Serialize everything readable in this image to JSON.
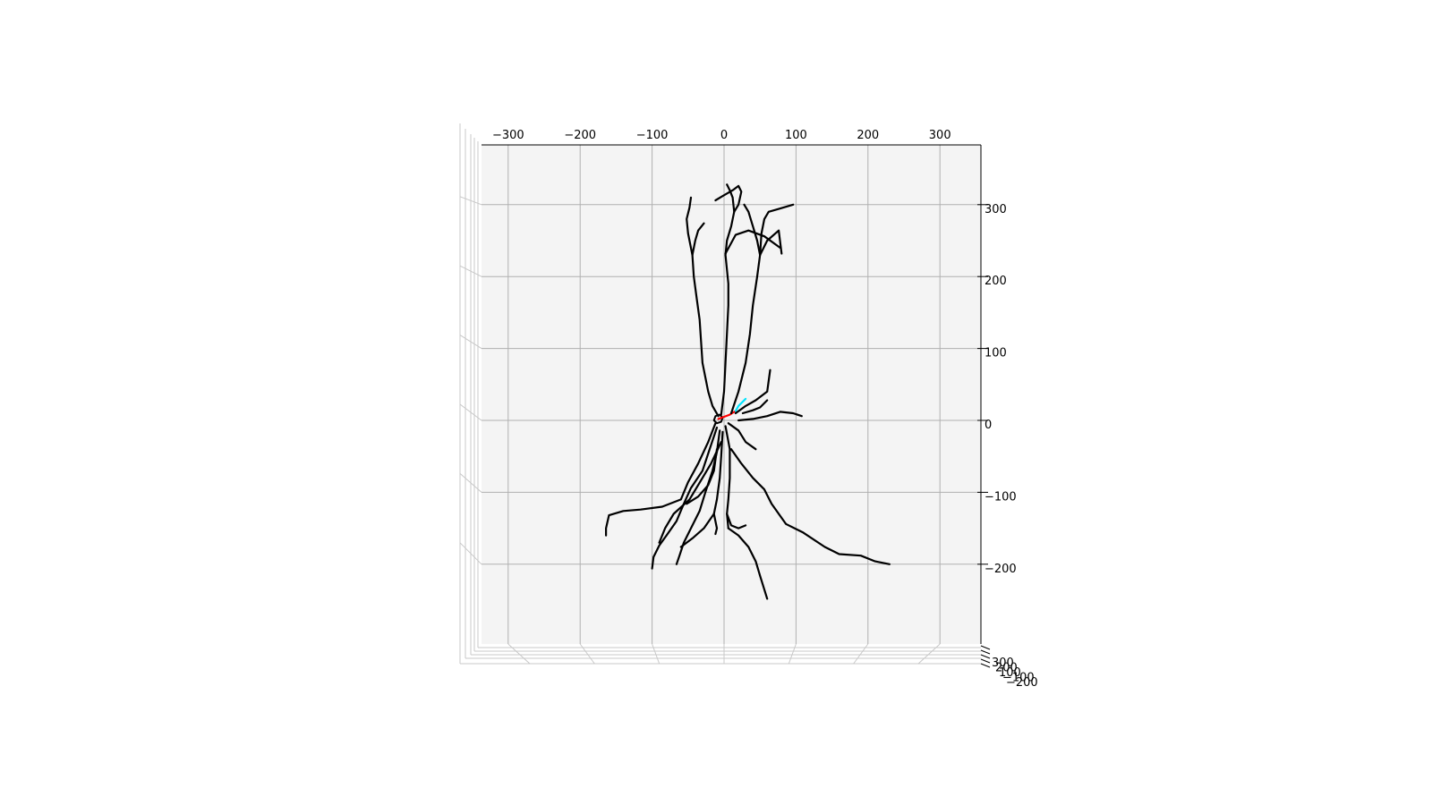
{
  "chart_data": {
    "type": "3d-line",
    "title": "",
    "xlabel": "",
    "ylabel": "",
    "zlabel": "",
    "xlim": [
      -350,
      350
    ],
    "ylim": [
      -300,
      390
    ],
    "grid": true,
    "pane_color": "#f4f4f4",
    "grid_color": "#b0b0b0",
    "x_ticks": [
      {
        "value": -300,
        "label": "−300"
      },
      {
        "value": -200,
        "label": "−200"
      },
      {
        "value": -100,
        "label": "−100"
      },
      {
        "value": 0,
        "label": "0"
      },
      {
        "value": 100,
        "label": "100"
      },
      {
        "value": 200,
        "label": "200"
      },
      {
        "value": 300,
        "label": "300"
      }
    ],
    "y_ticks": [
      {
        "value": 300,
        "label": "300"
      },
      {
        "value": 200,
        "label": "200"
      },
      {
        "value": 100,
        "label": "100"
      },
      {
        "value": 0,
        "label": "0"
      },
      {
        "value": -100,
        "label": "−100"
      },
      {
        "value": -200,
        "label": "−200"
      }
    ],
    "z_ticks": [
      {
        "value": 300,
        "label": "300"
      },
      {
        "value": 200,
        "label": "200"
      },
      {
        "value": 100,
        "label": "100"
      },
      {
        "value": -100,
        "label": "−100"
      },
      {
        "value": -200,
        "label": "−200"
      }
    ],
    "series": [
      {
        "kind": "soma",
        "color": "#000000",
        "points": [
          [
            -14,
            0
          ],
          [
            -12,
            6
          ],
          [
            -6,
            8
          ],
          [
            -2,
            4
          ],
          [
            -4,
            -2
          ],
          [
            -10,
            -4
          ],
          [
            -14,
            0
          ]
        ]
      },
      {
        "kind": "axon",
        "color": "#ff0000",
        "points": [
          [
            -8,
            2
          ],
          [
            0,
            5
          ],
          [
            8,
            8
          ],
          [
            16,
            13
          ]
        ]
      },
      {
        "kind": "apical",
        "color": "#00e5ff",
        "points": [
          [
            16,
            13
          ],
          [
            20,
            20
          ],
          [
            26,
            26
          ],
          [
            30,
            30
          ]
        ]
      },
      {
        "kind": "dendrite",
        "color": "#000000",
        "points": [
          [
            -8,
            6
          ],
          [
            -16,
            20
          ],
          [
            -22,
            40
          ],
          [
            -26,
            60
          ],
          [
            -30,
            80
          ],
          [
            -32,
            110
          ],
          [
            -34,
            140
          ],
          [
            -38,
            170
          ],
          [
            -42,
            200
          ],
          [
            -44,
            230
          ],
          [
            -50,
            260
          ],
          [
            -52,
            280
          ],
          [
            -48,
            296
          ],
          [
            -46,
            310
          ]
        ]
      },
      {
        "kind": "dendrite",
        "color": "#000000",
        "points": [
          [
            -44,
            230
          ],
          [
            -40,
            250
          ],
          [
            -36,
            264
          ],
          [
            -28,
            274
          ]
        ]
      },
      {
        "kind": "dendrite",
        "color": "#000000",
        "points": [
          [
            -4,
            8
          ],
          [
            0,
            40
          ],
          [
            2,
            80
          ],
          [
            4,
            120
          ],
          [
            6,
            160
          ],
          [
            6,
            190
          ],
          [
            4,
            210
          ],
          [
            2,
            230
          ],
          [
            4,
            250
          ],
          [
            10,
            270
          ],
          [
            14,
            290
          ],
          [
            12,
            310
          ],
          [
            8,
            320
          ],
          [
            4,
            328
          ]
        ]
      },
      {
        "kind": "dendrite",
        "color": "#000000",
        "points": [
          [
            14,
            290
          ],
          [
            20,
            300
          ],
          [
            24,
            318
          ],
          [
            20,
            326
          ],
          [
            12,
            320
          ],
          [
            -2,
            312
          ],
          [
            -12,
            306
          ]
        ]
      },
      {
        "kind": "dendrite",
        "color": "#000000",
        "points": [
          [
            10,
            10
          ],
          [
            20,
            40
          ],
          [
            30,
            80
          ],
          [
            36,
            120
          ],
          [
            40,
            160
          ],
          [
            46,
            200
          ],
          [
            50,
            230
          ],
          [
            60,
            250
          ],
          [
            76,
            264
          ],
          [
            80,
            232
          ]
        ]
      },
      {
        "kind": "dendrite",
        "color": "#000000",
        "points": [
          [
            50,
            230
          ],
          [
            52,
            260
          ],
          [
            56,
            280
          ],
          [
            62,
            290
          ],
          [
            76,
            294
          ],
          [
            96,
            300
          ]
        ]
      },
      {
        "kind": "dendrite",
        "color": "#000000",
        "points": [
          [
            50,
            230
          ],
          [
            46,
            250
          ],
          [
            40,
            270
          ],
          [
            34,
            290
          ],
          [
            28,
            300
          ]
        ]
      },
      {
        "kind": "dendrite",
        "color": "#000000",
        "points": [
          [
            2,
            232
          ],
          [
            16,
            258
          ],
          [
            34,
            264
          ],
          [
            56,
            256
          ],
          [
            78,
            240
          ]
        ]
      },
      {
        "kind": "dendrite",
        "color": "#000000",
        "points": [
          [
            16,
            10
          ],
          [
            30,
            20
          ],
          [
            44,
            28
          ],
          [
            60,
            40
          ],
          [
            64,
            70
          ]
        ]
      },
      {
        "kind": "dendrite",
        "color": "#000000",
        "points": [
          [
            20,
            0
          ],
          [
            40,
            2
          ],
          [
            60,
            6
          ],
          [
            78,
            12
          ],
          [
            96,
            10
          ],
          [
            108,
            6
          ]
        ]
      },
      {
        "kind": "dendrite",
        "color": "#000000",
        "points": [
          [
            26,
            10
          ],
          [
            40,
            14
          ],
          [
            50,
            18
          ],
          [
            60,
            28
          ]
        ]
      },
      {
        "kind": "dendrite",
        "color": "#000000",
        "points": [
          [
            -12,
            -4
          ],
          [
            -22,
            -30
          ],
          [
            -36,
            -60
          ],
          [
            -50,
            -86
          ],
          [
            -60,
            -110
          ],
          [
            -86,
            -120
          ],
          [
            -116,
            -124
          ],
          [
            -140,
            -126
          ],
          [
            -160,
            -132
          ],
          [
            -164,
            -150
          ],
          [
            -164,
            -160
          ]
        ]
      },
      {
        "kind": "dendrite",
        "color": "#000000",
        "points": [
          [
            -10,
            -10
          ],
          [
            -20,
            -40
          ],
          [
            -30,
            -70
          ],
          [
            -46,
            -94
          ],
          [
            -56,
            -116
          ],
          [
            -66,
            -140
          ],
          [
            -80,
            -160
          ],
          [
            -90,
            -174
          ],
          [
            -98,
            -190
          ],
          [
            -100,
            -206
          ]
        ]
      },
      {
        "kind": "dendrite",
        "color": "#000000",
        "points": [
          [
            -6,
            -14
          ],
          [
            -10,
            -44
          ],
          [
            -16,
            -70
          ],
          [
            -26,
            -100
          ],
          [
            -34,
            -126
          ],
          [
            -46,
            -150
          ],
          [
            -56,
            -170
          ],
          [
            -62,
            -188
          ],
          [
            -66,
            -200
          ]
        ]
      },
      {
        "kind": "dendrite",
        "color": "#000000",
        "points": [
          [
            -2,
            -16
          ],
          [
            -4,
            -50
          ],
          [
            -6,
            -80
          ],
          [
            -10,
            -110
          ],
          [
            -14,
            -130
          ],
          [
            -28,
            -150
          ],
          [
            -44,
            -164
          ],
          [
            -60,
            -176
          ]
        ]
      },
      {
        "kind": "dendrite",
        "color": "#000000",
        "points": [
          [
            -4,
            -30
          ],
          [
            -18,
            -60
          ],
          [
            -30,
            -80
          ],
          [
            -48,
            -110
          ],
          [
            -70,
            -130
          ],
          [
            -82,
            -150
          ],
          [
            -90,
            -170
          ]
        ]
      },
      {
        "kind": "dendrite",
        "color": "#000000",
        "points": [
          [
            -10,
            -40
          ],
          [
            -14,
            -70
          ],
          [
            -22,
            -90
          ],
          [
            -36,
            -106
          ],
          [
            -52,
            -116
          ]
        ]
      },
      {
        "kind": "dendrite",
        "color": "#000000",
        "points": [
          [
            -14,
            -130
          ],
          [
            -10,
            -150
          ],
          [
            -12,
            -158
          ]
        ]
      },
      {
        "kind": "dendrite",
        "color": "#000000",
        "points": [
          [
            2,
            -8
          ],
          [
            8,
            -40
          ],
          [
            8,
            -80
          ],
          [
            6,
            -110
          ],
          [
            4,
            -130
          ],
          [
            6,
            -150
          ]
        ]
      },
      {
        "kind": "dendrite",
        "color": "#000000",
        "points": [
          [
            4,
            -130
          ],
          [
            10,
            -146
          ],
          [
            20,
            -150
          ],
          [
            30,
            -146
          ]
        ]
      },
      {
        "kind": "dendrite",
        "color": "#000000",
        "points": [
          [
            6,
            -150
          ],
          [
            20,
            -160
          ],
          [
            34,
            -176
          ],
          [
            44,
            -196
          ],
          [
            50,
            -216
          ],
          [
            60,
            -248
          ]
        ]
      },
      {
        "kind": "dendrite",
        "color": "#000000",
        "points": [
          [
            6,
            -4
          ],
          [
            20,
            -14
          ],
          [
            30,
            -30
          ],
          [
            44,
            -40
          ]
        ]
      },
      {
        "kind": "dendrite",
        "color": "#000000",
        "points": [
          [
            10,
            -40
          ],
          [
            24,
            -60
          ],
          [
            40,
            -80
          ],
          [
            56,
            -96
          ],
          [
            66,
            -116
          ],
          [
            86,
            -144
          ],
          [
            110,
            -156
          ],
          [
            140,
            -176
          ],
          [
            160,
            -186
          ],
          [
            190,
            -188
          ],
          [
            210,
            -196
          ],
          [
            230,
            -200
          ]
        ]
      }
    ]
  }
}
